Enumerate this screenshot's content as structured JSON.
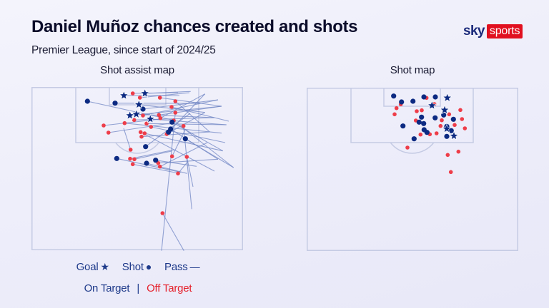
{
  "header": {
    "title": "Daniel Muñoz chances created and shots",
    "subtitle": "Premier League, since start of 2024/25"
  },
  "logo": {
    "sky": "sky",
    "sports": "sports"
  },
  "panels": [
    {
      "title": "Shot assist map"
    },
    {
      "title": "Shot map"
    }
  ],
  "legend": {
    "goal_label": "Goal",
    "goal_icon": "★",
    "shot_label": "Shot",
    "shot_icon": "●",
    "pass_label": "Pass",
    "pass_icon": "—",
    "on_target_label": "On Target",
    "separator": "|",
    "off_target_label": "Off Target"
  },
  "colors": {
    "on_target": "#0c2a82",
    "off_target": "#ee3d49",
    "pass": "#6c82c2",
    "pitch_lines": "#c5cbe4",
    "logo_red": "#e1101f"
  },
  "chart_data": [
    {
      "type": "scatter",
      "title": "Shot assist map",
      "xlim": [
        0,
        296
      ],
      "ylim": [
        0,
        229
      ],
      "legend": [
        "Goal",
        "Shot",
        "Pass",
        "On Target",
        "Off Target"
      ],
      "goals": [
        [
          129.3,
          12
        ],
        [
          158.7,
          9
        ],
        [
          150.3,
          24.7
        ],
        [
          137.7,
          40
        ],
        [
          146.7,
          38.3
        ],
        [
          166.3,
          45
        ]
      ],
      "on_target": [
        [
          78.3,
          20
        ],
        [
          117,
          22.7
        ],
        [
          156,
          31
        ],
        [
          196.7,
          49.3
        ],
        [
          194.7,
          59
        ],
        [
          191.7,
          63.3
        ],
        [
          215.3,
          72.7
        ],
        [
          159.7,
          83.7
        ],
        [
          119.3,
          100.3
        ],
        [
          161,
          107
        ],
        [
          173.7,
          102.7
        ]
      ],
      "off_target": [
        [
          141.7,
          9
        ],
        [
          151.7,
          15
        ],
        [
          179.7,
          15
        ],
        [
          201.3,
          20
        ],
        [
          196,
          28
        ],
        [
          201.3,
          36
        ],
        [
          156,
          40
        ],
        [
          143.7,
          46.3
        ],
        [
          130.3,
          50.7
        ],
        [
          161,
          51.3
        ],
        [
          178.3,
          39.3
        ],
        [
          180.3,
          43.7
        ],
        [
          101,
          54
        ],
        [
          167.3,
          56
        ],
        [
          107.7,
          64
        ],
        [
          152.7,
          63.3
        ],
        [
          158.3,
          65
        ],
        [
          212.7,
          54.7
        ],
        [
          189.3,
          66
        ],
        [
          154,
          69.7
        ],
        [
          138.7,
          88
        ],
        [
          138,
          100.7
        ],
        [
          144,
          101.3
        ],
        [
          141.7,
          108.3
        ],
        [
          177.3,
          106.7
        ],
        [
          179.7,
          111.7
        ],
        [
          196.7,
          97.3
        ],
        [
          217.3,
          98
        ],
        [
          205,
          121.3
        ],
        [
          183.3,
          177
        ],
        [
          199,
          47
        ]
      ],
      "passes": [
        [
          129.3,
          12,
          207,
          12
        ],
        [
          158.7,
          9,
          222.7,
          6.3
        ],
        [
          150.3,
          24.7,
          242.7,
          35.7
        ],
        [
          137.7,
          40,
          266,
          27
        ],
        [
          146.7,
          38.3,
          256,
          43
        ],
        [
          166.3,
          45,
          272.7,
          53
        ],
        [
          78.3,
          20,
          196,
          46
        ],
        [
          117,
          22.7,
          236,
          23
        ],
        [
          156,
          31,
          261,
          18
        ],
        [
          196.7,
          49.3,
          267.7,
          89.7
        ],
        [
          194.7,
          59,
          261,
          101.3
        ],
        [
          191.7,
          63.3,
          242.7,
          9.7
        ],
        [
          215.3,
          72.7,
          282.7,
          113
        ],
        [
          159.7,
          83.7,
          222,
          37
        ],
        [
          119.3,
          100.3,
          209.3,
          119.7
        ],
        [
          161,
          107,
          217.7,
          121.3
        ],
        [
          173.7,
          102.7,
          231,
          111.3
        ],
        [
          141.7,
          9,
          205,
          8
        ],
        [
          151.7,
          15,
          221,
          8
        ],
        [
          179.7,
          15,
          266,
          27
        ],
        [
          201.3,
          20,
          249.3,
          63
        ],
        [
          196,
          28,
          276,
          48
        ],
        [
          201.3,
          36,
          182,
          229.7
        ],
        [
          156,
          40,
          261,
          18
        ],
        [
          143.7,
          46.3,
          256,
          43
        ],
        [
          130.3,
          50.7,
          266,
          64.7
        ],
        [
          161,
          51.3,
          272.7,
          53
        ],
        [
          178.3,
          39.3,
          266,
          27
        ],
        [
          180.3,
          43.7,
          242.7,
          9.7
        ],
        [
          101,
          54,
          180,
          45
        ],
        [
          167.3,
          56,
          271,
          78
        ],
        [
          107.7,
          64,
          200,
          50
        ],
        [
          152.7,
          63.3,
          256,
          118
        ],
        [
          158.3,
          65,
          267.7,
          89.7
        ],
        [
          212.7,
          54.7,
          224.3,
          171.3
        ],
        [
          189.3,
          66,
          242.7,
          35.7
        ],
        [
          154,
          69.7,
          249.3,
          63
        ],
        [
          138.7,
          88,
          129,
          58
        ],
        [
          138,
          100.7,
          200,
          88
        ],
        [
          144,
          101.3,
          196,
          90
        ],
        [
          141.7,
          108.3,
          206,
          121
        ],
        [
          177.3,
          106.7,
          261,
          101.3
        ],
        [
          179.7,
          111.7,
          246,
          78
        ],
        [
          196.7,
          97.3,
          215,
          60
        ],
        [
          217.3,
          98,
          226,
          140
        ],
        [
          205,
          121.3,
          218.7,
          104.7
        ],
        [
          183.3,
          177,
          213.3,
          229.7
        ],
        [
          199,
          47,
          282.7,
          113
        ]
      ]
    },
    {
      "type": "scatter",
      "title": "Shot map",
      "xlim": [
        0,
        296
      ],
      "ylim": [
        0,
        229
      ],
      "legend": [
        "Goal",
        "Shot",
        "On Target",
        "Off Target"
      ],
      "goals": [
        [
          196.7,
          14.3
        ],
        [
          175.3,
          25
        ],
        [
          193,
          31.3
        ],
        [
          196,
          57.7
        ],
        [
          206,
          67.7
        ]
      ],
      "on_target": [
        [
          121.7,
          11.7
        ],
        [
          132.7,
          20
        ],
        [
          148.7,
          19
        ],
        [
          164,
          13
        ],
        [
          180,
          13
        ],
        [
          160.7,
          41.3
        ],
        [
          179.7,
          42.3
        ],
        [
          191.7,
          38.3
        ],
        [
          205.3,
          44.3
        ],
        [
          134.7,
          53.7
        ],
        [
          157.3,
          48.3
        ],
        [
          163.7,
          50.3
        ],
        [
          196,
          54.3
        ],
        [
          164.3,
          59
        ],
        [
          168.3,
          62.7
        ],
        [
          202.3,
          60.3
        ],
        [
          196,
          68.3
        ],
        [
          150.3,
          71.7
        ]
      ],
      "off_target": [
        [
          167.7,
          14.3
        ],
        [
          131.7,
          23.3
        ],
        [
          125.7,
          28.7
        ],
        [
          123,
          37.3
        ],
        [
          154,
          33
        ],
        [
          161,
          31.7
        ],
        [
          178.7,
          23
        ],
        [
          199.3,
          37.3
        ],
        [
          215,
          31.3
        ],
        [
          217.3,
          44
        ],
        [
          189,
          45.7
        ],
        [
          207,
          52.3
        ],
        [
          221.3,
          57
        ],
        [
          152.7,
          46
        ],
        [
          187.3,
          53.7
        ],
        [
          159.3,
          65.7
        ],
        [
          172.3,
          65.3
        ],
        [
          181.7,
          64
        ],
        [
          141,
          84
        ],
        [
          197.3,
          94.3
        ],
        [
          212.3,
          89.7
        ],
        [
          201.7,
          118.3
        ]
      ],
      "passes": []
    }
  ]
}
